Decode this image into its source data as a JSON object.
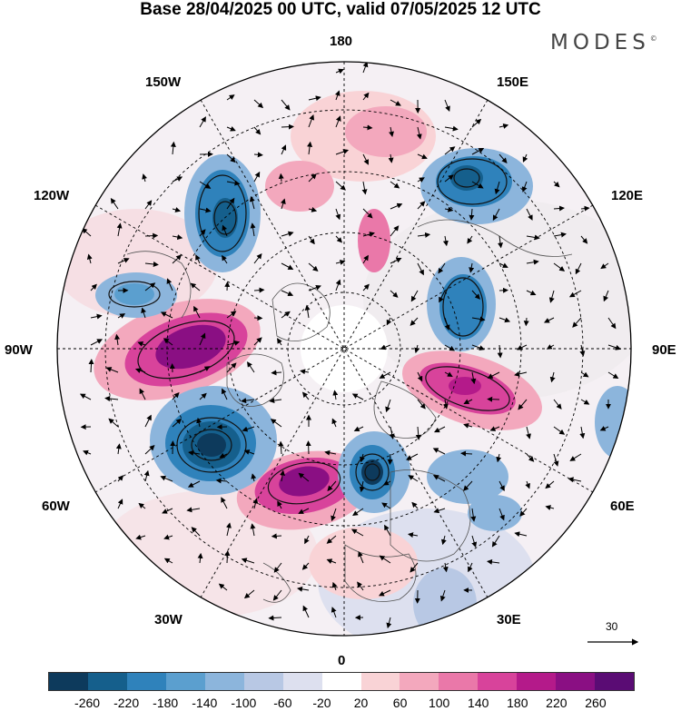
{
  "title": "Base 28/04/2025 00 UTC, valid 07/05/2025 12 UTC",
  "brand": "MODES",
  "brand_mark": "©",
  "longitude_labels": {
    "top": "180",
    "bottom": "0",
    "left": "90W",
    "right": "90E",
    "upper_left_1": "150W",
    "upper_left_2": "120W",
    "upper_right_1": "150E",
    "upper_right_2": "120E",
    "lower_left_1": "60W",
    "lower_left_2": "30W",
    "lower_right_1": "60E",
    "lower_right_2": "30E"
  },
  "reference_vector": {
    "value": "30"
  },
  "colorbar": {
    "colors": [
      "#0d3a5c",
      "#155f8c",
      "#2f82bb",
      "#5b9fcf",
      "#8cb5dc",
      "#b8c8e4",
      "#dde0ef",
      "#ffffff",
      "#f9d3d6",
      "#f3a8bd",
      "#ea78a9",
      "#d8439b",
      "#b41a8a",
      "#8a0f83",
      "#5a0c74"
    ],
    "labels": [
      "-260",
      "-220",
      "-180",
      "-140",
      "-100",
      "-60",
      "-20",
      "20",
      "60",
      "100",
      "140",
      "180",
      "220",
      "260"
    ]
  }
}
